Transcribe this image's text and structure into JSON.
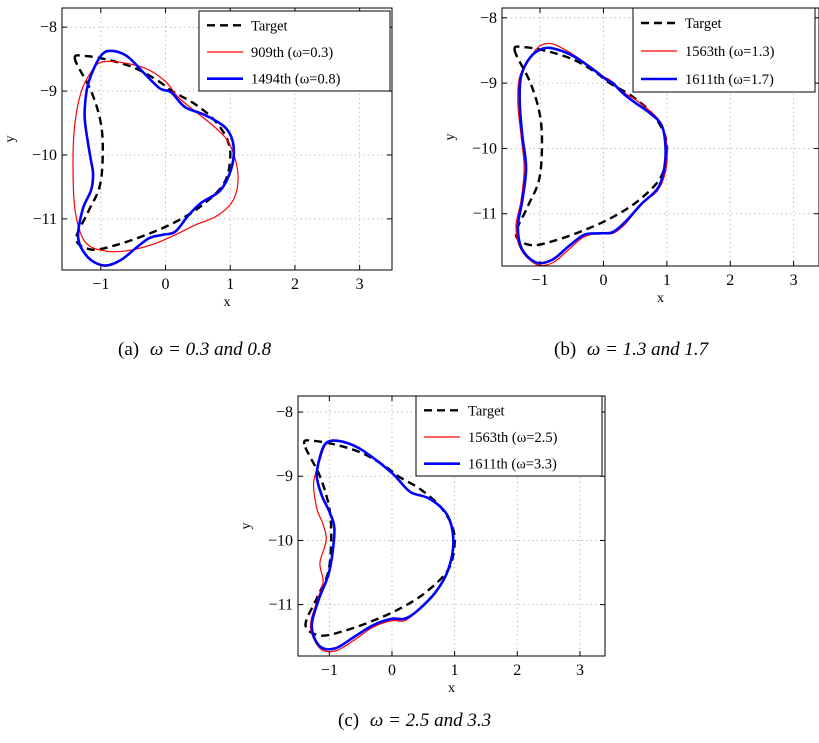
{
  "figure": {
    "panels": [
      {
        "caption_label": "(a)",
        "caption_math": "ω = 0.3 and 0.8",
        "legend": [
          "Target",
          "909th  (ω=0.3)",
          "1494th (ω=0.8)"
        ]
      },
      {
        "caption_label": "(b)",
        "caption_math": "ω = 1.3 and 1.7",
        "legend": [
          "Target",
          "1563th  (ω=1.3)",
          "1611th (ω=1.7)"
        ]
      },
      {
        "caption_label": "(c)",
        "caption_math": "ω = 2.5 and 3.3",
        "legend": [
          "Target",
          "1563th  (ω=2.5)",
          "1611th (ω=3.3)"
        ]
      }
    ]
  },
  "colors": {
    "target": "#000000",
    "first": "#ff0000",
    "second": "#0000ff",
    "grid": "#b0b0b0"
  },
  "chart_data": [
    {
      "type": "line",
      "xlabel": "x",
      "ylabel": "y",
      "xlim": [
        -1.6,
        3.5
      ],
      "ylim": [
        -11.8,
        -7.7
      ],
      "xticks": [
        "-1",
        "0",
        "1",
        "2",
        "3"
      ],
      "xtick_values": [
        -1,
        0,
        1,
        2,
        3
      ],
      "yticks": [
        "-8",
        "-9",
        "-10",
        "-11"
      ],
      "ytick_values": [
        -8,
        -9,
        -10,
        -11
      ],
      "grid": true,
      "legend_position": "top-right",
      "series": [
        {
          "name": "Target",
          "style": "dashed",
          "color": "#000000",
          "x": [
            -1.4,
            -1.25,
            -0.85,
            -0.45,
            -0.1,
            0.1,
            0.45,
            0.75,
            0.95,
            1.0,
            0.9,
            0.55,
            0.15,
            -0.3,
            -0.8,
            -1.15,
            -1.38,
            -1.2,
            -1.02,
            -0.97,
            -1.0,
            -1.15,
            -1.4
          ],
          "y": [
            -8.5,
            -8.45,
            -8.52,
            -8.65,
            -8.85,
            -9.0,
            -9.2,
            -9.45,
            -9.75,
            -10.05,
            -10.45,
            -10.8,
            -11.05,
            -11.25,
            -11.42,
            -11.48,
            -11.32,
            -10.9,
            -10.5,
            -10.0,
            -9.5,
            -9.0,
            -8.5
          ]
        },
        {
          "name": "909th  (ω=0.3)",
          "style": "solid",
          "color": "#ff0000",
          "x": [
            -1.0,
            -0.7,
            -0.3,
            0.0,
            0.2,
            0.5,
            0.8,
            1.0,
            1.12,
            1.05,
            0.8,
            0.45,
            0.15,
            -0.2,
            -0.6,
            -0.95,
            -1.25,
            -1.4,
            -1.43,
            -1.4,
            -1.3,
            -1.15,
            -1.0
          ],
          "y": [
            -8.55,
            -8.55,
            -8.65,
            -8.85,
            -9.1,
            -9.35,
            -9.6,
            -9.85,
            -10.3,
            -10.7,
            -10.95,
            -11.1,
            -11.25,
            -11.4,
            -11.5,
            -11.5,
            -11.35,
            -10.85,
            -10.1,
            -9.5,
            -9.0,
            -8.7,
            -8.55
          ]
        },
        {
          "name": "1494th (ω=0.8)",
          "style": "solid",
          "color": "#0000ff",
          "x": [
            -1.15,
            -1.0,
            -0.85,
            -0.6,
            -0.35,
            -0.1,
            0.05,
            0.12,
            0.3,
            0.55,
            0.75,
            0.95,
            1.05,
            1.02,
            0.85,
            0.55,
            0.35,
            0.15,
            -0.05,
            -0.25,
            -0.45,
            -0.7,
            -0.95,
            -1.2,
            -1.35,
            -1.28,
            -1.15,
            -1.12,
            -1.15,
            -1.2,
            -1.25,
            -1.22,
            -1.15
          ],
          "y": [
            -8.75,
            -8.45,
            -8.37,
            -8.45,
            -8.7,
            -8.95,
            -9.0,
            -9.05,
            -9.25,
            -9.35,
            -9.45,
            -9.6,
            -9.85,
            -10.2,
            -10.55,
            -10.75,
            -10.95,
            -11.2,
            -11.25,
            -11.3,
            -11.45,
            -11.65,
            -11.73,
            -11.6,
            -11.3,
            -10.85,
            -10.55,
            -10.3,
            -10.1,
            -9.8,
            -9.4,
            -9.0,
            -8.75
          ]
        }
      ]
    },
    {
      "type": "line",
      "xlabel": "x",
      "ylabel": "y",
      "xlim": [
        -1.6,
        3.4
      ],
      "ylim": [
        -11.8,
        -7.85
      ],
      "xticks": [
        "-1",
        "0",
        "1",
        "2",
        "3"
      ],
      "xtick_values": [
        -1,
        0,
        1,
        2,
        3
      ],
      "yticks": [
        "-8",
        "-9",
        "-10",
        "-11"
      ],
      "ytick_values": [
        -8,
        -9,
        -10,
        -11
      ],
      "grid": true,
      "legend_position": "top-right",
      "series": [
        {
          "name": "Target",
          "style": "dashed",
          "color": "#000000",
          "x": [
            -1.4,
            -1.25,
            -0.85,
            -0.45,
            -0.1,
            0.1,
            0.45,
            0.75,
            0.95,
            1.0,
            0.9,
            0.55,
            0.15,
            -0.3,
            -0.8,
            -1.15,
            -1.38,
            -1.2,
            -1.02,
            -0.97,
            -1.0,
            -1.15,
            -1.4
          ],
          "y": [
            -8.5,
            -8.45,
            -8.52,
            -8.65,
            -8.85,
            -9.0,
            -9.2,
            -9.45,
            -9.75,
            -10.05,
            -10.45,
            -10.8,
            -11.05,
            -11.25,
            -11.42,
            -11.48,
            -11.32,
            -10.9,
            -10.5,
            -10.0,
            -9.5,
            -9.0,
            -8.5
          ]
        },
        {
          "name": "1563th  (ω=1.3)",
          "style": "solid",
          "color": "#ff0000",
          "x": [
            -1.15,
            -1.0,
            -0.8,
            -0.5,
            -0.2,
            0.0,
            0.1,
            0.25,
            0.5,
            0.7,
            0.9,
            1.0,
            0.98,
            0.85,
            0.6,
            0.35,
            0.15,
            -0.05,
            -0.3,
            -0.55,
            -0.8,
            -1.05,
            -1.3,
            -1.38,
            -1.3,
            -1.25,
            -1.3,
            -1.35,
            -1.32,
            -1.15
          ],
          "y": [
            -8.6,
            -8.43,
            -8.4,
            -8.55,
            -8.75,
            -8.9,
            -8.95,
            -9.1,
            -9.25,
            -9.4,
            -9.6,
            -9.95,
            -10.35,
            -10.65,
            -10.85,
            -11.15,
            -11.3,
            -11.3,
            -11.35,
            -11.55,
            -11.75,
            -11.78,
            -11.55,
            -11.2,
            -10.8,
            -10.3,
            -9.8,
            -9.3,
            -8.9,
            -8.6
          ]
        },
        {
          "name": "1611th (ω=1.7)",
          "style": "solid",
          "color": "#0000ff",
          "x": [
            -1.15,
            -0.95,
            -0.75,
            -0.45,
            -0.15,
            0.05,
            0.15,
            0.3,
            0.5,
            0.72,
            0.92,
            0.98,
            0.95,
            0.85,
            0.6,
            0.35,
            0.15,
            -0.05,
            -0.3,
            -0.55,
            -0.8,
            -1.05,
            -1.28,
            -1.35,
            -1.28,
            -1.22,
            -1.28,
            -1.32,
            -1.3,
            -1.15
          ],
          "y": [
            -8.6,
            -8.47,
            -8.48,
            -8.6,
            -8.8,
            -8.95,
            -9.0,
            -9.15,
            -9.3,
            -9.45,
            -9.65,
            -10.0,
            -10.35,
            -10.62,
            -10.85,
            -11.12,
            -11.28,
            -11.3,
            -11.32,
            -11.5,
            -11.7,
            -11.75,
            -11.55,
            -11.2,
            -10.8,
            -10.3,
            -9.8,
            -9.3,
            -8.9,
            -8.6
          ]
        }
      ]
    },
    {
      "type": "line",
      "xlabel": "x",
      "ylabel": "y",
      "xlim": [
        -1.5,
        3.4
      ],
      "ylim": [
        -11.8,
        -7.75
      ],
      "xticks": [
        "-1",
        "0",
        "1",
        "2",
        "3"
      ],
      "xtick_values": [
        -1,
        0,
        1,
        2,
        3
      ],
      "yticks": [
        "-8",
        "-9",
        "-10",
        "-11"
      ],
      "ytick_values": [
        -8,
        -9,
        -10,
        -11
      ],
      "grid": true,
      "legend_position": "top-right",
      "series": [
        {
          "name": "Target",
          "style": "dashed",
          "color": "#000000",
          "x": [
            -1.4,
            -1.25,
            -0.85,
            -0.45,
            -0.1,
            0.1,
            0.45,
            0.75,
            0.95,
            1.0,
            0.9,
            0.55,
            0.15,
            -0.3,
            -0.8,
            -1.15,
            -1.38,
            -1.2,
            -1.02,
            -0.97,
            -1.0,
            -1.15,
            -1.4
          ],
          "y": [
            -8.5,
            -8.45,
            -8.52,
            -8.65,
            -8.85,
            -9.0,
            -9.2,
            -9.45,
            -9.75,
            -10.05,
            -10.45,
            -10.8,
            -11.05,
            -11.25,
            -11.42,
            -11.48,
            -11.32,
            -10.9,
            -10.5,
            -10.0,
            -9.5,
            -9.0,
            -8.5
          ]
        },
        {
          "name": "1563th  (ω=2.5)",
          "style": "solid",
          "color": "#ff0000",
          "x": [
            -1.05,
            -0.85,
            -0.55,
            -0.25,
            0.0,
            0.1,
            0.3,
            0.6,
            0.88,
            0.98,
            0.9,
            0.7,
            0.4,
            0.2,
            0.0,
            -0.3,
            -0.6,
            -0.9,
            -1.15,
            -1.3,
            -1.2,
            -1.1,
            -1.15,
            -1.05,
            -1.1,
            -1.2,
            -1.25,
            -1.15,
            -1.05
          ],
          "y": [
            -8.5,
            -8.45,
            -8.55,
            -8.75,
            -8.95,
            -9.05,
            -9.25,
            -9.35,
            -9.6,
            -10.0,
            -10.45,
            -10.8,
            -11.1,
            -11.25,
            -11.25,
            -11.35,
            -11.55,
            -11.72,
            -11.68,
            -11.35,
            -10.95,
            -10.65,
            -10.35,
            -10.0,
            -9.75,
            -9.5,
            -9.1,
            -8.75,
            -8.5
          ]
        },
        {
          "name": "1611th (ω=3.3)",
          "style": "solid",
          "color": "#0000ff",
          "x": [
            -1.05,
            -0.85,
            -0.55,
            -0.25,
            0.0,
            0.1,
            0.3,
            0.6,
            0.88,
            0.98,
            0.9,
            0.7,
            0.4,
            0.2,
            0.0,
            -0.3,
            -0.6,
            -0.9,
            -1.15,
            -1.28,
            -1.18,
            -1.02,
            -0.95,
            -0.92,
            -1.0,
            -1.12,
            -1.2,
            -1.15,
            -1.05
          ],
          "y": [
            -8.48,
            -8.45,
            -8.55,
            -8.75,
            -8.95,
            -9.05,
            -9.25,
            -9.35,
            -9.6,
            -10.0,
            -10.45,
            -10.8,
            -11.1,
            -11.22,
            -11.22,
            -11.32,
            -11.5,
            -11.68,
            -11.65,
            -11.35,
            -10.95,
            -10.55,
            -10.2,
            -9.8,
            -9.55,
            -9.3,
            -9.0,
            -8.7,
            -8.48
          ]
        }
      ]
    }
  ]
}
